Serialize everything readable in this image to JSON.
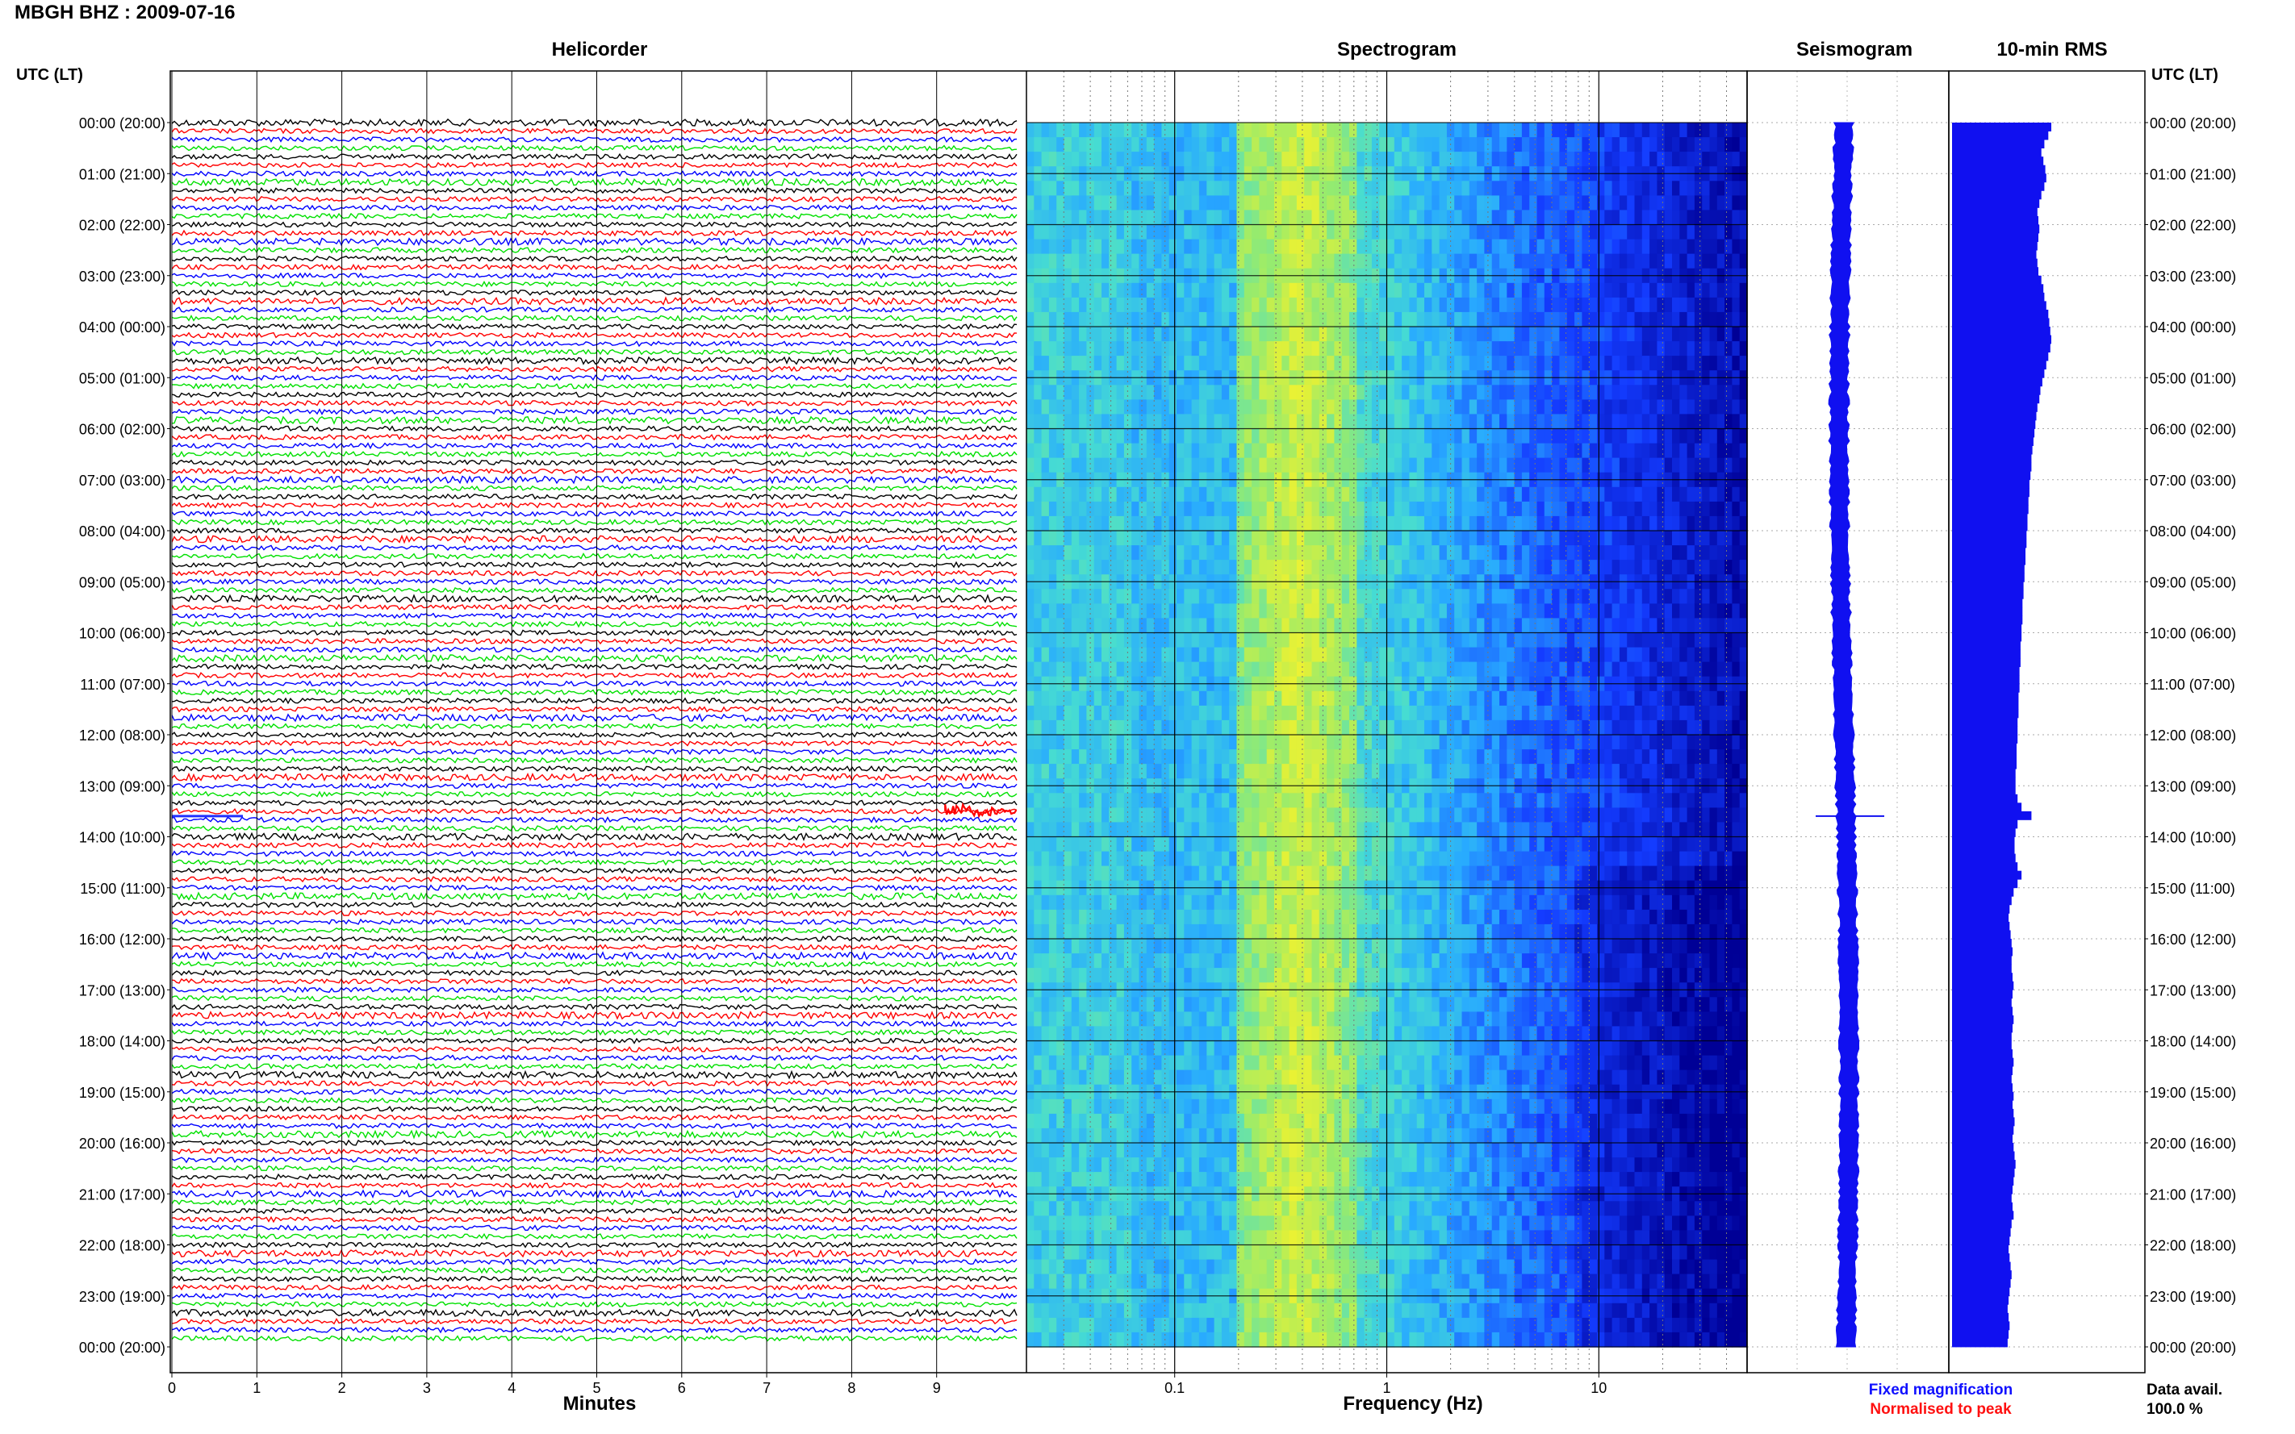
{
  "title": "MBGH BHZ : 2009-07-16",
  "panels": {
    "helicorder": "Helicorder",
    "spectrogram": "Spectrogram",
    "seismogram": "Seismogram",
    "rms": "10-min RMS"
  },
  "utc_label_left": "UTC (LT)",
  "utc_label_right": "UTC (LT)",
  "legend": {
    "fixed": "Fixed magnification",
    "normalised": "Normalised to peak",
    "fixed_color": "#1010ff",
    "normalised_color": "#ff1010"
  },
  "data_avail": {
    "label": "Data avail.",
    "value": "100.0 %"
  },
  "colors": {
    "trace_cycle": [
      "#000000",
      "#ff0000",
      "#0000ff",
      "#00e000"
    ],
    "rms_bar": "#1010f0",
    "seismogram": "#1010f0",
    "event": "#ff0000"
  },
  "chart_data": [
    {
      "type": "line",
      "panel": "Helicorder",
      "xlabel": "Minutes",
      "x_ticks": [
        "0",
        "1",
        "2",
        "3",
        "4",
        "5",
        "6",
        "7",
        "8",
        "9"
      ],
      "xlim": [
        0,
        10
      ],
      "rows_per_hour": 6,
      "hours": 24,
      "y_tick_labels": [
        "00:00 (20:00)",
        "01:00 (21:00)",
        "02:00 (22:00)",
        "03:00 (23:00)",
        "04:00 (00:00)",
        "05:00 (01:00)",
        "06:00 (02:00)",
        "07:00 (03:00)",
        "08:00 (04:00)",
        "09:00 (05:00)",
        "10:00 (06:00)",
        "11:00 (07:00)",
        "12:00 (08:00)",
        "13:00 (09:00)",
        "14:00 (10:00)",
        "15:00 (11:00)",
        "16:00 (12:00)",
        "17:00 (13:00)",
        "18:00 (14:00)",
        "19:00 (15:00)",
        "20:00 (16:00)",
        "21:00 (17:00)",
        "22:00 (18:00)",
        "23:00 (19:00)",
        "00:00 (20:00)"
      ],
      "event": {
        "row": 81,
        "start_minute": 9.1
      }
    },
    {
      "type": "heatmap",
      "panel": "Spectrogram",
      "xlabel": "Frequency (Hz)",
      "x_scale": "log",
      "xlim": [
        0.02,
        50
      ],
      "x_ticks": [
        "0.1",
        "1",
        "10"
      ],
      "grid": true
    },
    {
      "type": "line",
      "panel": "Seismogram",
      "orientation": "vertical"
    },
    {
      "type": "bar",
      "panel": "10-min RMS",
      "orientation": "horizontal",
      "bins": 144,
      "relative_values": [
        1.0,
        0.97,
        0.93,
        0.9,
        0.92,
        0.94,
        0.95,
        0.93,
        0.9,
        0.88,
        0.86,
        0.87,
        0.88,
        0.87,
        0.86,
        0.85,
        0.86,
        0.87,
        0.9,
        0.92,
        0.93,
        0.95,
        0.97,
        0.98,
        0.99,
        1.0,
        0.99,
        0.97,
        0.95,
        0.93,
        0.91,
        0.89,
        0.88,
        0.86,
        0.85,
        0.84,
        0.83,
        0.82,
        0.81,
        0.8,
        0.8,
        0.79,
        0.78,
        0.78,
        0.77,
        0.77,
        0.76,
        0.76,
        0.75,
        0.75,
        0.74,
        0.74,
        0.73,
        0.73,
        0.72,
        0.72,
        0.71,
        0.71,
        0.71,
        0.7,
        0.7,
        0.69,
        0.69,
        0.69,
        0.68,
        0.68,
        0.68,
        0.67,
        0.67,
        0.67,
        0.66,
        0.66,
        0.66,
        0.65,
        0.65,
        0.65,
        0.64,
        0.64,
        0.64,
        0.66,
        0.7,
        0.8,
        0.66,
        0.64,
        0.63,
        0.63,
        0.64,
        0.66,
        0.7,
        0.66,
        0.62,
        0.6,
        0.58,
        0.57,
        0.58,
        0.59,
        0.6,
        0.61,
        0.6,
        0.6,
        0.61,
        0.62,
        0.61,
        0.6,
        0.61,
        0.62,
        0.61,
        0.6,
        0.6,
        0.61,
        0.62,
        0.61,
        0.6,
        0.61,
        0.62,
        0.61,
        0.62,
        0.63,
        0.62,
        0.61,
        0.62,
        0.63,
        0.64,
        0.63,
        0.62,
        0.61,
        0.6,
        0.61,
        0.62,
        0.6,
        0.59,
        0.58,
        0.57,
        0.58,
        0.59,
        0.6,
        0.59,
        0.58,
        0.57,
        0.56,
        0.57,
        0.58,
        0.57,
        0.56
      ]
    }
  ]
}
